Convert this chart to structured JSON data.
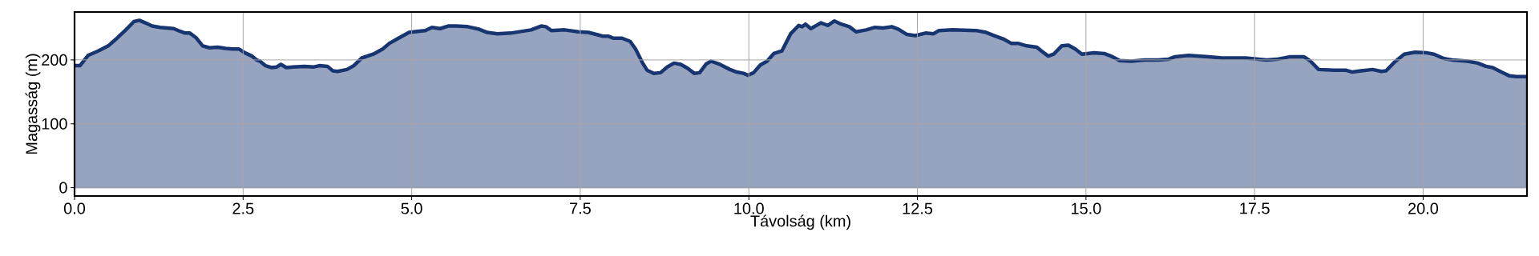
{
  "chart_data": {
    "type": "area",
    "xlabel": "Távolság (km)",
    "ylabel": "Magasság (m)",
    "color": "#173570",
    "grid": true,
    "xlim": [
      0,
      21.54
    ],
    "ylim": [
      -13,
      275
    ],
    "xticks": [
      {
        "value": 0,
        "label": "0.0"
      },
      {
        "value": 2.5,
        "label": "2.5"
      },
      {
        "value": 5,
        "label": "5.0"
      },
      {
        "value": 7.5,
        "label": "7.5"
      },
      {
        "value": 10,
        "label": "10.0"
      },
      {
        "value": 12.5,
        "label": "12.5"
      },
      {
        "value": 15,
        "label": "15.0"
      },
      {
        "value": 17.5,
        "label": "17.5"
      },
      {
        "value": 20,
        "label": "20.0"
      }
    ],
    "yticks": [
      0,
      100,
      200
    ],
    "x": [
      0,
      0.08,
      0.2,
      0.35,
      0.5,
      0.64,
      0.76,
      0.88,
      0.96,
      1.05,
      1.15,
      1.27,
      1.37,
      1.47,
      1.56,
      1.64,
      1.71,
      1.8,
      1.9,
      2.0,
      2.12,
      2.24,
      2.34,
      2.44,
      2.53,
      2.63,
      2.7,
      2.75,
      2.83,
      2.92,
      3.0,
      3.06,
      3.14,
      3.24,
      3.41,
      3.55,
      3.63,
      3.75,
      3.83,
      3.9,
      4.04,
      4.14,
      4.26,
      4.43,
      4.57,
      4.67,
      4.82,
      4.96,
      5.11,
      5.2,
      5.3,
      5.42,
      5.54,
      5.66,
      5.83,
      6.0,
      6.12,
      6.27,
      6.47,
      6.77,
      6.92,
      6.99,
      7.07,
      7.27,
      7.47,
      7.62,
      7.77,
      7.84,
      7.92,
      7.99,
      8.12,
      8.24,
      8.32,
      8.42,
      8.49,
      8.59,
      8.69,
      8.79,
      8.89,
      8.99,
      9.09,
      9.19,
      9.27,
      9.37,
      9.44,
      9.57,
      9.72,
      9.82,
      9.92,
      9.99,
      10.07,
      10.17,
      10.27,
      10.37,
      10.49,
      10.62,
      10.74,
      10.79,
      10.84,
      10.92,
      11.07,
      11.17,
      11.27,
      11.37,
      11.49,
      11.59,
      11.74,
      11.87,
      11.99,
      12.12,
      12.22,
      12.34,
      12.47,
      12.62,
      12.74,
      12.82,
      13.02,
      13.37,
      13.52,
      13.64,
      13.77,
      13.89,
      13.99,
      14.12,
      14.27,
      14.34,
      14.44,
      14.52,
      14.64,
      14.74,
      14.84,
      14.94,
      15.12,
      15.27,
      15.37,
      15.5,
      15.67,
      15.87,
      16.07,
      16.22,
      16.32,
      16.52,
      16.82,
      17.02,
      17.37,
      17.68,
      17.83,
      18.03,
      18.23,
      18.33,
      18.45,
      18.68,
      18.85,
      18.95,
      19.08,
      19.25,
      19.38,
      19.45,
      19.57,
      19.72,
      19.88,
      20.06,
      20.16,
      20.31,
      20.43,
      20.66,
      20.81,
      20.93,
      21.03,
      21.16,
      21.28,
      21.38,
      21.53
    ],
    "values": [
      191,
      191,
      207,
      214,
      222,
      235,
      247,
      260,
      262,
      258,
      253,
      251,
      250,
      249,
      245,
      242,
      242,
      235,
      222,
      219,
      220,
      218,
      217,
      217,
      211,
      206,
      200,
      198,
      191,
      188,
      189,
      193,
      188,
      189,
      190,
      189,
      191,
      190,
      183,
      182,
      185,
      191,
      203,
      209,
      217,
      226,
      235,
      243,
      245,
      246,
      251,
      249,
      253,
      253,
      252,
      248,
      243,
      241,
      242,
      247,
      253,
      252,
      246,
      247,
      244,
      243,
      239,
      237,
      237,
      234,
      234,
      229,
      217,
      196,
      184,
      179,
      180,
      189,
      195,
      193,
      187,
      179,
      180,
      194,
      198,
      193,
      185,
      181,
      179,
      176,
      180,
      192,
      198,
      210,
      214,
      241,
      254,
      252,
      256,
      249,
      258,
      254,
      261,
      256,
      252,
      244,
      247,
      251,
      250,
      252,
      248,
      240,
      238,
      242,
      241,
      246,
      247,
      246,
      243,
      238,
      233,
      226,
      226,
      222,
      220,
      214,
      206,
      209,
      222,
      223,
      217,
      209,
      211,
      210,
      206,
      199,
      198,
      200,
      200,
      201,
      205,
      207,
      205,
      203,
      203,
      200,
      201,
      205,
      205,
      198,
      185,
      184,
      184,
      181,
      183,
      185,
      182,
      183,
      196,
      209,
      212,
      211,
      209,
      202,
      200,
      198,
      195,
      190,
      188,
      181,
      175,
      174,
      174
    ]
  }
}
